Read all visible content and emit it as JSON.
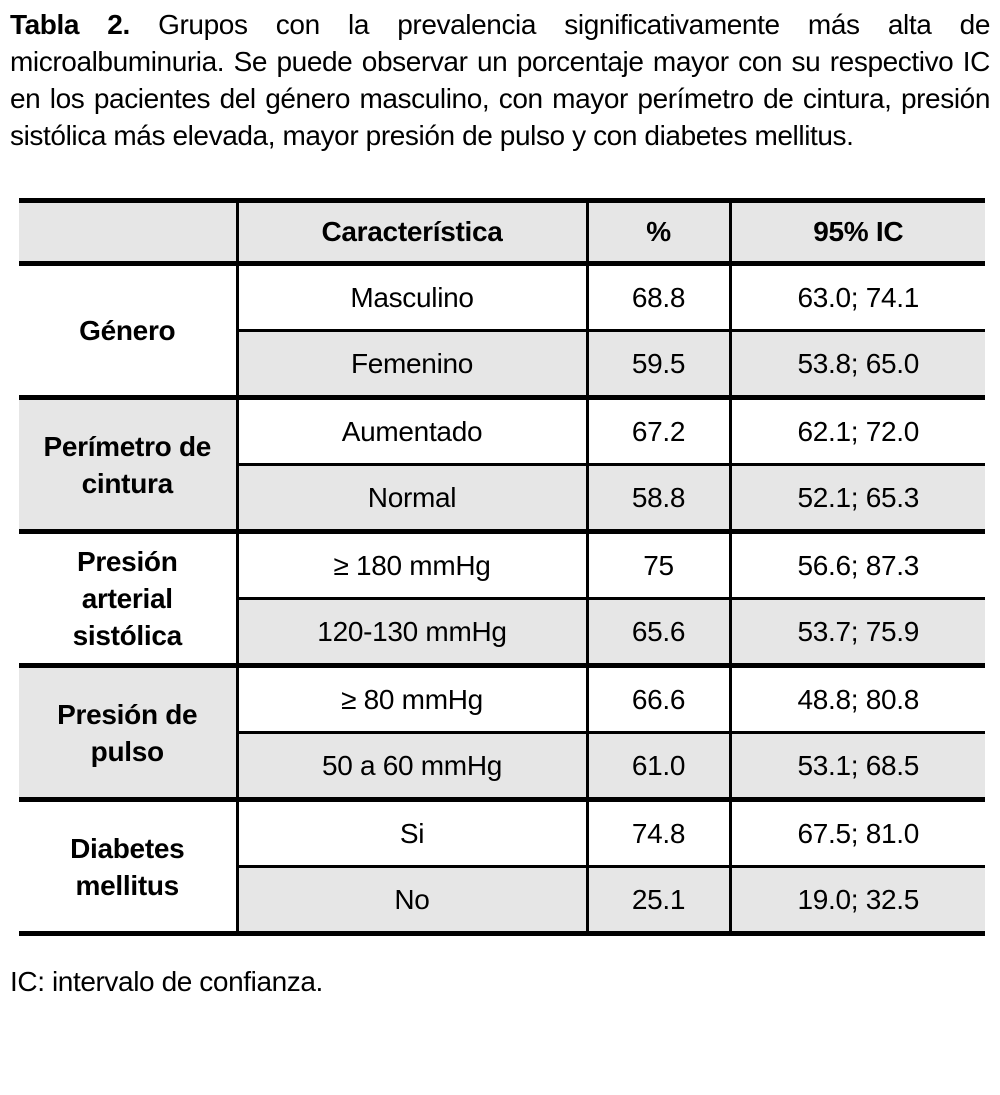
{
  "caption": {
    "label": "Tabla 2.",
    "text": "Grupos con la prevalencia significativamente más alta de microalbuminuria. Se puede observar un porcentaje mayor con su respectivo IC en los pacientes del género masculino, con mayor perímetro de cintura, presión sistólica más elevada, mayor presión de pulso y con diabetes mellitus."
  },
  "table": {
    "headers": {
      "characteristic": "Característica",
      "percent": "%",
      "ci": "95% IC"
    },
    "groups": [
      {
        "label": "Género",
        "label_lines": [
          "Género"
        ],
        "rows": [
          {
            "characteristic": "Masculino",
            "percent": "68.8",
            "ci": "63.0; 74.1"
          },
          {
            "characteristic": "Femenino",
            "percent": "59.5",
            "ci": "53.8; 65.0"
          }
        ]
      },
      {
        "label": "Perímetro de cintura",
        "label_lines": [
          "Perímetro de",
          "cintura"
        ],
        "rows": [
          {
            "characteristic": "Aumentado",
            "percent": "67.2",
            "ci": "62.1; 72.0"
          },
          {
            "characteristic": "Normal",
            "percent": "58.8",
            "ci": "52.1; 65.3"
          }
        ]
      },
      {
        "label": "Presión arterial sistólica",
        "label_lines": [
          "Presión",
          "arterial",
          "sistólica"
        ],
        "rows": [
          {
            "characteristic": "≥ 180 mmHg",
            "percent": "75",
            "ci": "56.6; 87.3"
          },
          {
            "characteristic": "120-130 mmHg",
            "percent": "65.6",
            "ci": "53.7; 75.9"
          }
        ]
      },
      {
        "label": "Presión de pulso",
        "label_lines": [
          "Presión de",
          "pulso"
        ],
        "rows": [
          {
            "characteristic": "≥ 80 mmHg",
            "percent": "66.6",
            "ci": "48.8; 80.8"
          },
          {
            "characteristic": "50 a 60 mmHg",
            "percent": "61.0",
            "ci": "53.1; 68.5"
          }
        ]
      },
      {
        "label": "Diabetes mellitus",
        "label_lines": [
          "Diabetes",
          "mellitus"
        ],
        "rows": [
          {
            "characteristic": "Si",
            "percent": "74.8",
            "ci": "67.5; 81.0"
          },
          {
            "characteristic": "No",
            "percent": "25.1",
            "ci": "19.0; 32.5"
          }
        ]
      }
    ]
  },
  "footnote": "IC: intervalo de confianza.",
  "colors": {
    "border": "#000000",
    "row_shade": "#e6e6e6",
    "text": "#000000",
    "background": "#ffffff"
  }
}
